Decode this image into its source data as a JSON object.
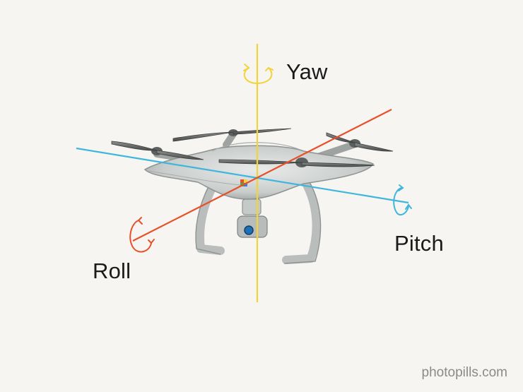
{
  "labels": {
    "yaw": "Yaw",
    "pitch": "Pitch",
    "roll": "Roll"
  },
  "watermark": "photopills.com",
  "colors": {
    "background": "#f6f5f2",
    "yaw_axis": "#f2d43a",
    "pitch_axis": "#3fb6dc",
    "roll_axis": "#e8502a"
  },
  "icons": {
    "yaw_rotation": "circular-arrow-icon",
    "pitch_rotation": "circular-arrow-icon",
    "roll_rotation": "circular-arrow-icon"
  }
}
